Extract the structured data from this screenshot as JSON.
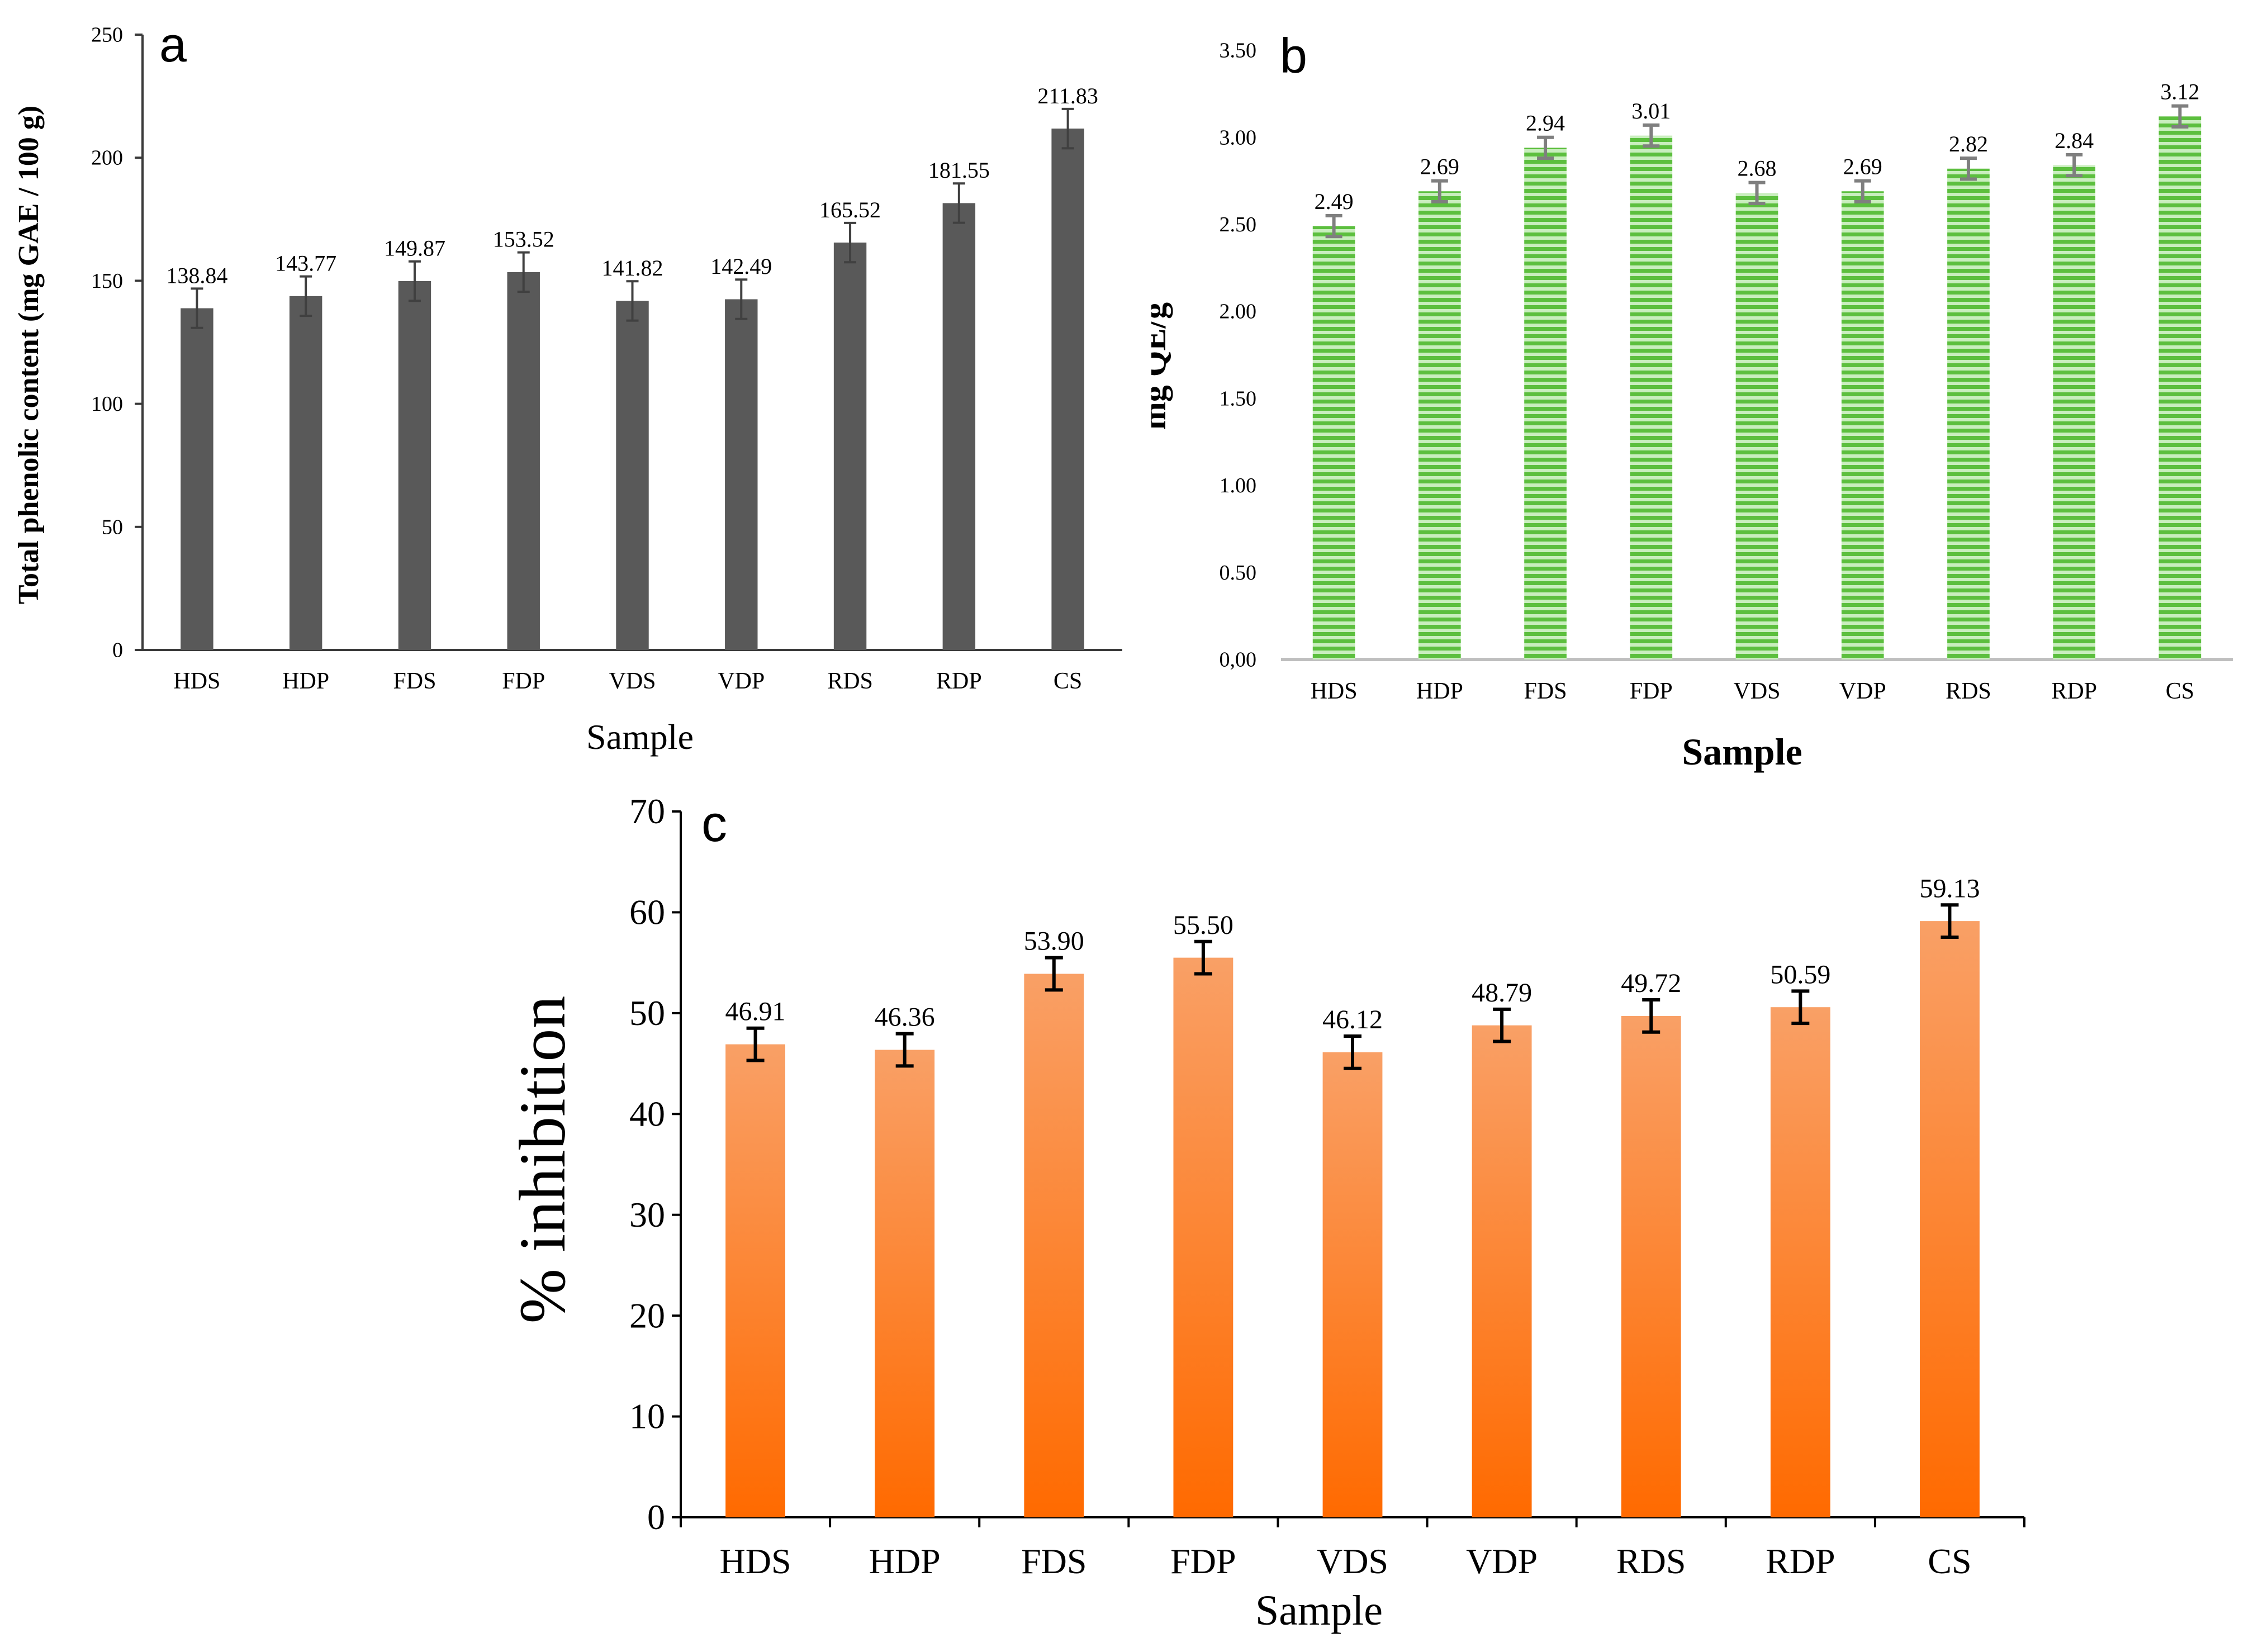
{
  "chart_data": [
    {
      "id": "a",
      "type": "bar",
      "panel_label": "a",
      "title": "",
      "xlabel": "Sample",
      "ylabel": "Total phenolic content (mg GAE / 100 g)",
      "categories": [
        "HDS",
        "HDP",
        "FDS",
        "FDP",
        "VDS",
        "VDP",
        "RDS",
        "RDP",
        "CS"
      ],
      "values": [
        138.84,
        143.77,
        149.87,
        153.52,
        141.82,
        142.49,
        165.52,
        181.55,
        211.83
      ],
      "value_labels": [
        "138.84",
        "143.77",
        "149.87",
        "153.52",
        "141.82",
        "142.49",
        "165.52",
        "181.55",
        "211.83"
      ],
      "errors": [
        8,
        8,
        8,
        8,
        8,
        8,
        8,
        8,
        8
      ],
      "ylim": [
        0,
        250
      ],
      "yticks": [
        0,
        50,
        100,
        150,
        200,
        250
      ],
      "ytick_labels": [
        "0",
        "50",
        "100",
        "150",
        "200",
        "250"
      ],
      "grid": false,
      "bar_color": "#595959",
      "error_color": "#404040"
    },
    {
      "id": "b",
      "type": "bar",
      "panel_label": "b",
      "title": "",
      "xlabel": "Sample",
      "ylabel": "mg QE/g",
      "categories": [
        "HDS",
        "HDP",
        "FDS",
        "FDP",
        "VDS",
        "VDP",
        "RDS",
        "RDP",
        "CS"
      ],
      "values": [
        2.49,
        2.69,
        2.94,
        3.01,
        2.68,
        2.69,
        2.82,
        2.84,
        3.12
      ],
      "value_labels": [
        "2.49",
        "2.69",
        "2.94",
        "3.01",
        "2.68",
        "2.69",
        "2.82",
        "2.84",
        "3.12"
      ],
      "errors": [
        0.06,
        0.06,
        0.06,
        0.06,
        0.06,
        0.06,
        0.06,
        0.06,
        0.06
      ],
      "ylim": [
        0,
        3.5
      ],
      "yticks": [
        0,
        0.5,
        1,
        1.5,
        2,
        2.5,
        3,
        3.5
      ],
      "ytick_labels": [
        "0,00",
        "0.50",
        "1.00",
        "1.50",
        "2.00",
        "2.50",
        "3.00",
        "3.50"
      ],
      "grid": false,
      "bar_color": "#5cbf3e",
      "bar_stripe_color": "#c9eebe",
      "error_color": "#7f7f7f"
    },
    {
      "id": "c",
      "type": "bar",
      "panel_label": "c",
      "title": "",
      "xlabel": "Sample",
      "ylabel": "% inhibition",
      "categories": [
        "HDS",
        "HDP",
        "FDS",
        "FDP",
        "VDS",
        "VDP",
        "RDS",
        "RDP",
        "CS"
      ],
      "values": [
        46.91,
        46.36,
        53.9,
        55.5,
        46.12,
        48.79,
        49.72,
        50.59,
        59.13
      ],
      "value_labels": [
        "46.91",
        "46.36",
        "53.90",
        "55.50",
        "46.12",
        "48.79",
        "49.72",
        "50.59",
        "59.13"
      ],
      "errors": [
        1.6,
        1.6,
        1.6,
        1.6,
        1.6,
        1.6,
        1.6,
        1.6,
        1.6
      ],
      "ylim": [
        0,
        70
      ],
      "yticks": [
        0,
        10,
        20,
        30,
        40,
        50,
        60,
        70
      ],
      "ytick_labels": [
        "0",
        "10",
        "20",
        "30",
        "40",
        "50",
        "60",
        "70"
      ],
      "grid": false,
      "bar_color_top": "#f9a066",
      "bar_color_bottom": "#ff6a00",
      "error_color": "#000000"
    }
  ]
}
